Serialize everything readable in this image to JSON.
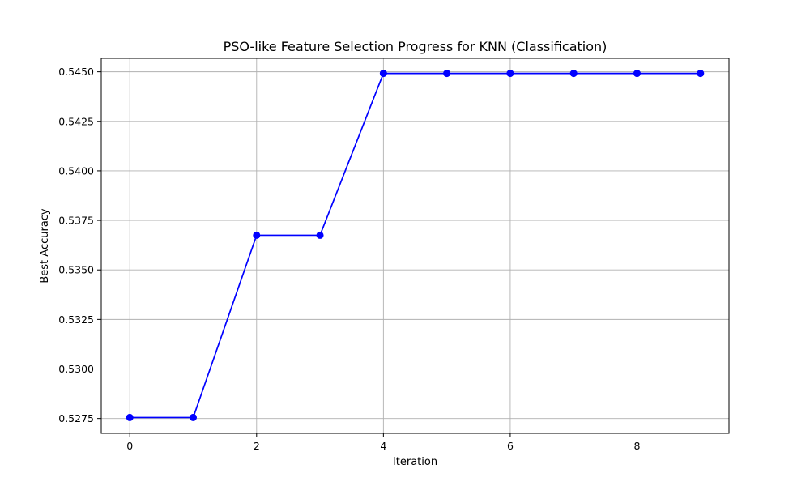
{
  "chart_data": {
    "type": "line",
    "title": "PSO-like Feature Selection Progress for KNN (Classification)",
    "xlabel": "Iteration",
    "ylabel": "Best Accuracy",
    "x": [
      0,
      1,
      2,
      3,
      4,
      5,
      6,
      7,
      8,
      9
    ],
    "series": [
      {
        "values": [
          0.52755,
          0.52755,
          0.53675,
          0.53675,
          0.54492,
          0.54492,
          0.54492,
          0.54492,
          0.54492,
          0.54492
        ],
        "color": "#0000ff",
        "marker": "circle"
      }
    ],
    "xlim": [
      -0.45,
      9.45
    ],
    "ylim": [
      0.52675,
      0.54568
    ],
    "x_ticks": [
      0,
      2,
      4,
      6,
      8
    ],
    "x_tick_labels": [
      "0",
      "2",
      "4",
      "6",
      "8"
    ],
    "y_ticks": [
      0.5275,
      0.53,
      0.5325,
      0.535,
      0.5375,
      0.54,
      0.5425,
      0.545
    ],
    "y_tick_labels": [
      "0.5275",
      "0.5300",
      "0.5325",
      "0.5350",
      "0.5375",
      "0.5400",
      "0.5425",
      "0.5450"
    ],
    "grid": true,
    "legend": "none"
  }
}
